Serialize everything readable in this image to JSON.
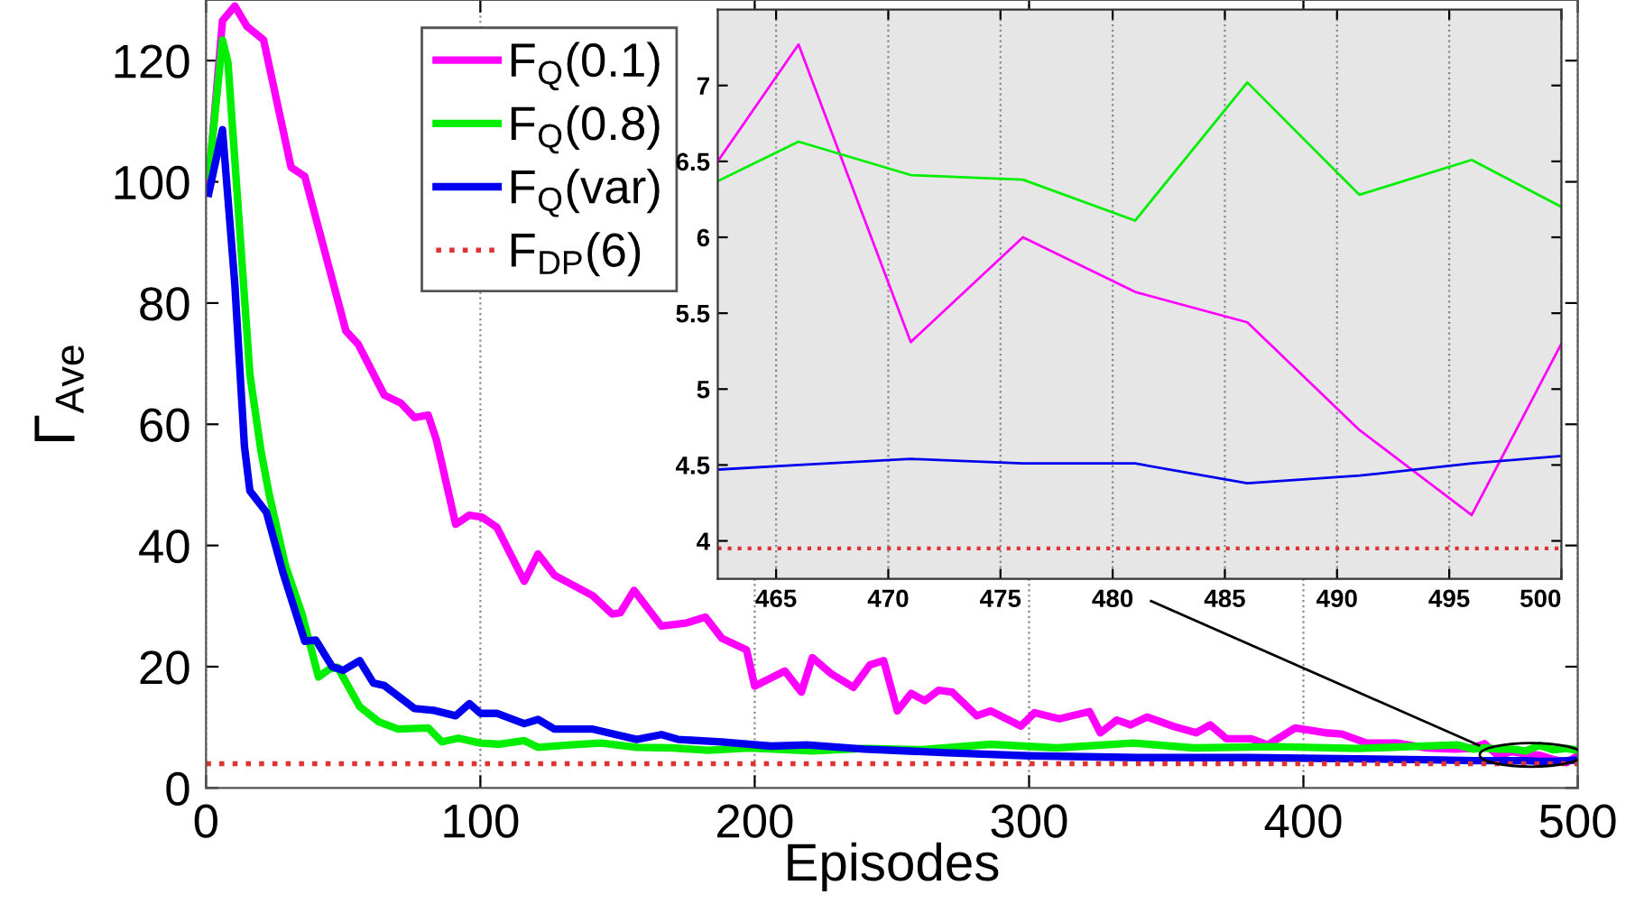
{
  "chart_data": [
    {
      "type": "line",
      "xlabel": "Episodes",
      "ylabel": "Γ$_{Ave}$",
      "xlim": [
        0,
        500
      ],
      "xticks": [
        0,
        100,
        200,
        300,
        400,
        500
      ],
      "ylim": [
        0,
        130
      ],
      "yticks": [
        0,
        20,
        40,
        60,
        80,
        100,
        120
      ],
      "grid": "x",
      "legend": "top left",
      "line_style": "solid",
      "series": [
        {
          "name": "F$_{Q}$(0.1)",
          "color": "#ff00ff",
          "x": [
            1,
            6,
            10.5,
            15,
            21,
            31,
            36,
            51,
            55.5,
            65,
            71,
            76,
            81,
            84,
            91,
            96,
            100.5,
            106,
            116,
            121,
            127,
            141,
            148,
            151,
            156,
            166,
            175,
            182,
            188,
            197,
            200,
            211,
            217,
            221,
            228,
            236,
            242,
            247,
            252,
            257,
            262,
            267,
            272,
            281,
            286,
            297,
            302,
            311,
            322,
            326,
            332,
            337,
            343,
            353,
            361,
            366,
            372,
            381,
            387,
            397,
            408,
            414,
            423,
            434,
            445,
            455,
            461,
            466,
            471,
            476,
            481,
            486,
            491,
            496,
            500
          ],
          "values": [
            100,
            126.6,
            129,
            125.6,
            123.4,
            102.4,
            100.9,
            75.4,
            73.2,
            64.8,
            63.5,
            61.1,
            61.5,
            57.4,
            43.5,
            45.0,
            44.7,
            43.0,
            34.1,
            38.6,
            35.1,
            31.7,
            28.7,
            28.9,
            32.6,
            26.7,
            27.2,
            28.2,
            24.7,
            22.8,
            16.8,
            19.3,
            15.8,
            21.5,
            18.8,
            16.6,
            20.3,
            21.0,
            12.7,
            15.6,
            14.4,
            16.1,
            15.8,
            11.9,
            12.7,
            10.2,
            12.4,
            11.4,
            12.6,
            9.1,
            11.2,
            10.4,
            11.7,
            10.1,
            9.1,
            10.4,
            8.1,
            8.1,
            7.1,
            9.9,
            9.1,
            8.9,
            7.4,
            7.4,
            6.6,
            6.4,
            6.5,
            7.3,
            5.3,
            6.0,
            5.6,
            5.4,
            4.7,
            4.2,
            5.3
          ]
        },
        {
          "name": "F$_{Q}$(0.8)",
          "color": "#00ee00",
          "x": [
            1,
            6,
            8,
            16,
            20,
            23,
            29,
            35,
            41,
            45,
            48,
            56,
            63,
            70,
            81,
            86,
            92,
            100,
            107,
            116,
            121,
            133,
            144,
            157,
            170,
            183,
            198,
            221,
            240,
            260,
            286,
            310,
            338,
            360,
            390,
            420,
            456,
            462,
            466,
            471,
            476,
            481,
            486,
            491,
            496,
            500
          ],
          "values": [
            101,
            123.4,
            119.7,
            68.2,
            55.7,
            48.5,
            36.6,
            28.7,
            18.3,
            19.6,
            19.9,
            13.4,
            10.9,
            9.7,
            9.9,
            7.6,
            8.2,
            7.4,
            7.2,
            7.8,
            6.7,
            7.1,
            7.4,
            6.7,
            6.6,
            6.2,
            6.6,
            6.1,
            6.5,
            6.3,
            7.2,
            6.6,
            7.4,
            6.6,
            6.8,
            6.5,
            7.1,
            6.4,
            6.6,
            6.4,
            6.4,
            6.1,
            7.0,
            6.3,
            6.5,
            6.2
          ]
        },
        {
          "name": "F$_{Q}$(var)",
          "color": "#0000ee",
          "x": [
            1,
            6,
            10.5,
            14,
            16,
            22,
            28,
            36,
            40,
            46,
            50,
            56,
            61,
            65,
            76,
            83,
            91,
            96,
            100,
            106,
            116,
            121,
            127,
            141,
            157,
            166,
            172,
            188,
            206,
            219,
            240,
            270,
            300,
            340,
            380,
            420,
            450,
            462,
            466,
            471,
            476,
            481,
            486,
            491,
            496,
            500
          ],
          "values": [
            98.1,
            108.6,
            83.1,
            56.4,
            49.0,
            45.5,
            35.6,
            24.2,
            24.4,
            20.0,
            19.4,
            21.0,
            17.3,
            16.9,
            13.1,
            12.8,
            11.9,
            13.9,
            12.3,
            12.3,
            10.6,
            11.3,
            9.7,
            9.7,
            8.0,
            8.8,
            8.0,
            7.6,
            6.9,
            7.1,
            6.4,
            5.8,
            5.3,
            5.0,
            5.0,
            4.8,
            4.6,
            4.5,
            4.5,
            4.5,
            4.5,
            4.5,
            4.4,
            4.4,
            4.5,
            4.6
          ]
        },
        {
          "name": "F$_{DP}$(6)",
          "color": "#dd3333",
          "line_style": "dotted",
          "x": [
            0,
            500
          ],
          "values": [
            4,
            4
          ]
        }
      ]
    },
    {
      "type": "line",
      "xlim": [
        462.4,
        500
      ],
      "xticks": [
        465,
        470,
        475,
        480,
        485,
        490,
        495,
        500
      ],
      "ylim": [
        3.75,
        7.5
      ],
      "yticks": [
        4,
        4.5,
        5,
        5.5,
        6,
        6.5,
        7
      ],
      "grid": "x",
      "line_style": "solid",
      "series": [
        {
          "color": "#ff00ff",
          "x": [
            462.4,
            466,
            471,
            476,
            481,
            486,
            491,
            496,
            500
          ],
          "values": [
            6.5,
            7.27,
            5.31,
            6.0,
            5.64,
            5.44,
            4.73,
            4.17,
            5.3
          ]
        },
        {
          "color": "#00ee00",
          "x": [
            462.4,
            466,
            471,
            476,
            481,
            486,
            491,
            496,
            500
          ],
          "values": [
            6.37,
            6.63,
            6.41,
            6.38,
            6.11,
            7.02,
            6.28,
            6.51,
            6.2
          ]
        },
        {
          "color": "#0000ee",
          "x": [
            462.4,
            466,
            471,
            476,
            481,
            486,
            491,
            496,
            500
          ],
          "values": [
            4.47,
            4.5,
            4.54,
            4.51,
            4.51,
            4.38,
            4.43,
            4.51,
            4.56
          ]
        },
        {
          "color": "#dd3333",
          "line_style": "dotted",
          "x": [
            462.4,
            500
          ],
          "values": [
            3.95,
            3.95
          ]
        }
      ]
    }
  ]
}
